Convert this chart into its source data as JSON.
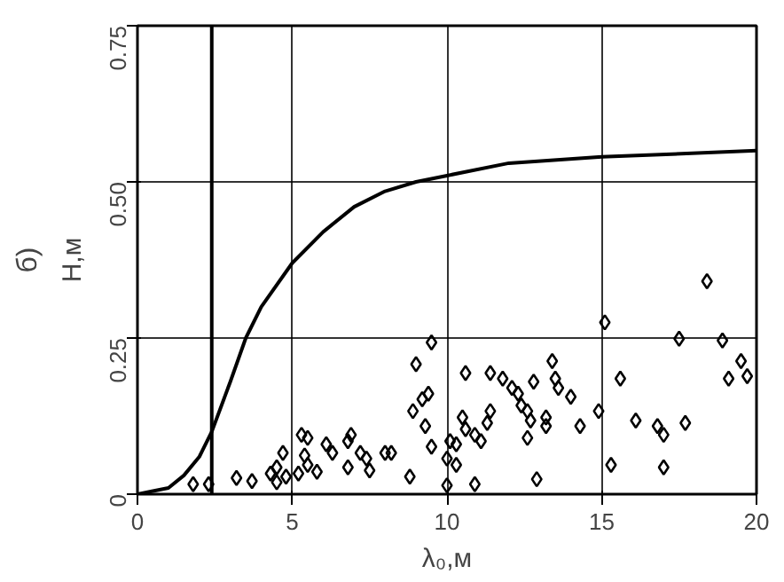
{
  "chart_data": {
    "type": "scatter",
    "xlabel": "λ₀,м",
    "ylabel": "Н,м",
    "annotations": [
      "б)"
    ],
    "xlim": [
      0,
      20
    ],
    "ylim": [
      0,
      0.75
    ],
    "xticks": [
      0,
      5,
      10,
      15,
      20
    ],
    "yticks": [
      0,
      0.25,
      {
        "value": 0.5,
        "label": "0.50"
      },
      0.75
    ],
    "grid": true,
    "ref_lines": [
      {
        "axis": "x",
        "value": 2.4,
        "color": "#000000"
      }
    ],
    "series": [
      {
        "type": "line",
        "color": "#000000",
        "marker": "none",
        "line_style": "solid",
        "x": [
          0,
          0.5,
          1,
          1.5,
          2,
          2.4,
          3,
          3.5,
          4,
          5,
          6,
          7,
          8,
          9,
          10,
          12,
          15,
          20
        ],
        "values": [
          0,
          0.005,
          0.01,
          0.03,
          0.06,
          0.1,
          0.18,
          0.25,
          0.3,
          0.37,
          0.42,
          0.46,
          0.485,
          0.5,
          0.51,
          0.53,
          0.54,
          0.55
        ]
      },
      {
        "color": "#000000",
        "marker": "diamond",
        "x": [
          1.8,
          2.3,
          3.2,
          3.7,
          4.3,
          4.5,
          4.7,
          4.5,
          4.8,
          5.3,
          5.5,
          5.4,
          5.2,
          5.5,
          5.8,
          6.1,
          6.3,
          6.8,
          6.9,
          6.8,
          7.2,
          7.4,
          7.5,
          8.0,
          8.2,
          8.8,
          9.0,
          8.9,
          9.2,
          9.4,
          9.3,
          9.5,
          9.5,
          10.0,
          10.0,
          10.1,
          10.3,
          10.3,
          10.5,
          10.6,
          10.6,
          10.9,
          11.1,
          10.9,
          11.4,
          11.4,
          11.3,
          11.8,
          12.1,
          12.3,
          12.4,
          12.6,
          12.6,
          12.8,
          12.9,
          12.7,
          13.2,
          13.2,
          13.4,
          13.5,
          13.6,
          14.0,
          14.3,
          14.9,
          15.1,
          15.3,
          15.6,
          16.1,
          16.8,
          17.0,
          17.0,
          17.5,
          17.7,
          18.4,
          18.9,
          19.1,
          19.5,
          19.7
        ],
        "values": [
          0.016,
          0.016,
          0.026,
          0.021,
          0.033,
          0.043,
          0.066,
          0.019,
          0.028,
          0.095,
          0.09,
          0.062,
          0.033,
          0.047,
          0.036,
          0.08,
          0.066,
          0.085,
          0.095,
          0.043,
          0.066,
          0.057,
          0.038,
          0.066,
          0.066,
          0.028,
          0.208,
          0.133,
          0.152,
          0.161,
          0.109,
          0.243,
          0.076,
          0.057,
          0.014,
          0.085,
          0.08,
          0.047,
          0.123,
          0.194,
          0.104,
          0.095,
          0.085,
          0.016,
          0.194,
          0.133,
          0.114,
          0.185,
          0.17,
          0.161,
          0.142,
          0.133,
          0.09,
          0.18,
          0.024,
          0.118,
          0.123,
          0.109,
          0.213,
          0.185,
          0.17,
          0.156,
          0.109,
          0.133,
          0.275,
          0.047,
          0.185,
          0.118,
          0.109,
          0.095,
          0.043,
          0.249,
          0.114,
          0.341,
          0.246,
          0.185,
          0.213,
          0.189
        ]
      }
    ]
  }
}
